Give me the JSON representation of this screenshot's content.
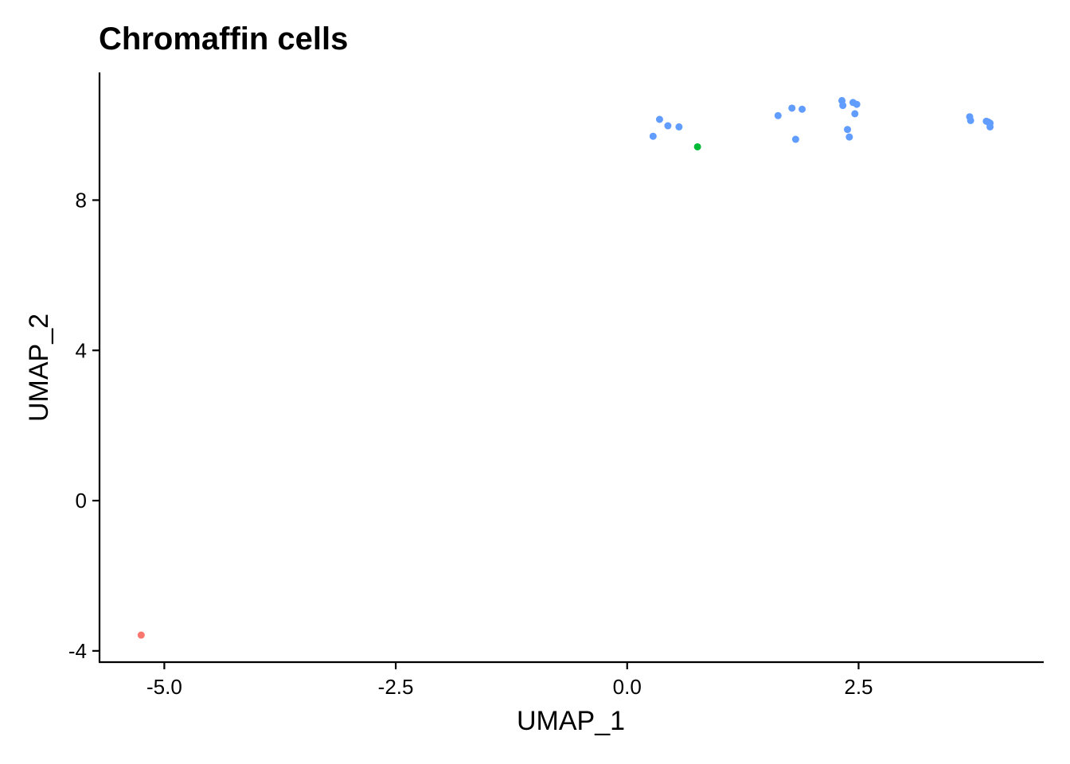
{
  "chart_data": {
    "type": "scatter",
    "title": "Chromaffin cells",
    "xlabel": "UMAP_1",
    "ylabel": "UMAP_2",
    "xlim": [
      -5.7,
      4.5
    ],
    "ylim": [
      -4.3,
      11.4
    ],
    "xticks": [
      -5.0,
      -2.5,
      0.0,
      2.5
    ],
    "xtick_labels": [
      "-5.0",
      "-2.5",
      "0.0",
      "2.5"
    ],
    "yticks": [
      -4,
      0,
      4,
      8
    ],
    "ytick_labels": [
      "-4",
      "0",
      "4",
      "8"
    ],
    "grid": false,
    "legend": "none",
    "series": [
      {
        "color": "#F8766D",
        "points": [
          [
            -5.25,
            -3.58
          ]
        ]
      },
      {
        "color": "#00BA38",
        "points": [
          [
            0.76,
            9.42
          ]
        ]
      },
      {
        "color": "#619CFF",
        "points": [
          [
            0.35,
            10.15
          ],
          [
            0.44,
            9.98
          ],
          [
            0.56,
            9.95
          ],
          [
            0.28,
            9.7
          ],
          [
            1.63,
            10.25
          ],
          [
            1.78,
            10.45
          ],
          [
            1.89,
            10.42
          ],
          [
            1.82,
            9.62
          ],
          [
            2.32,
            10.65
          ],
          [
            2.33,
            10.52
          ],
          [
            2.44,
            10.6
          ],
          [
            2.48,
            10.55
          ],
          [
            2.46,
            10.3
          ],
          [
            2.38,
            9.88
          ],
          [
            2.4,
            9.68
          ],
          [
            3.7,
            10.22
          ],
          [
            3.71,
            10.12
          ],
          [
            3.88,
            10.1
          ],
          [
            3.92,
            10.05
          ],
          [
            3.92,
            9.95
          ],
          [
            3.9,
            10.08
          ]
        ]
      }
    ]
  }
}
